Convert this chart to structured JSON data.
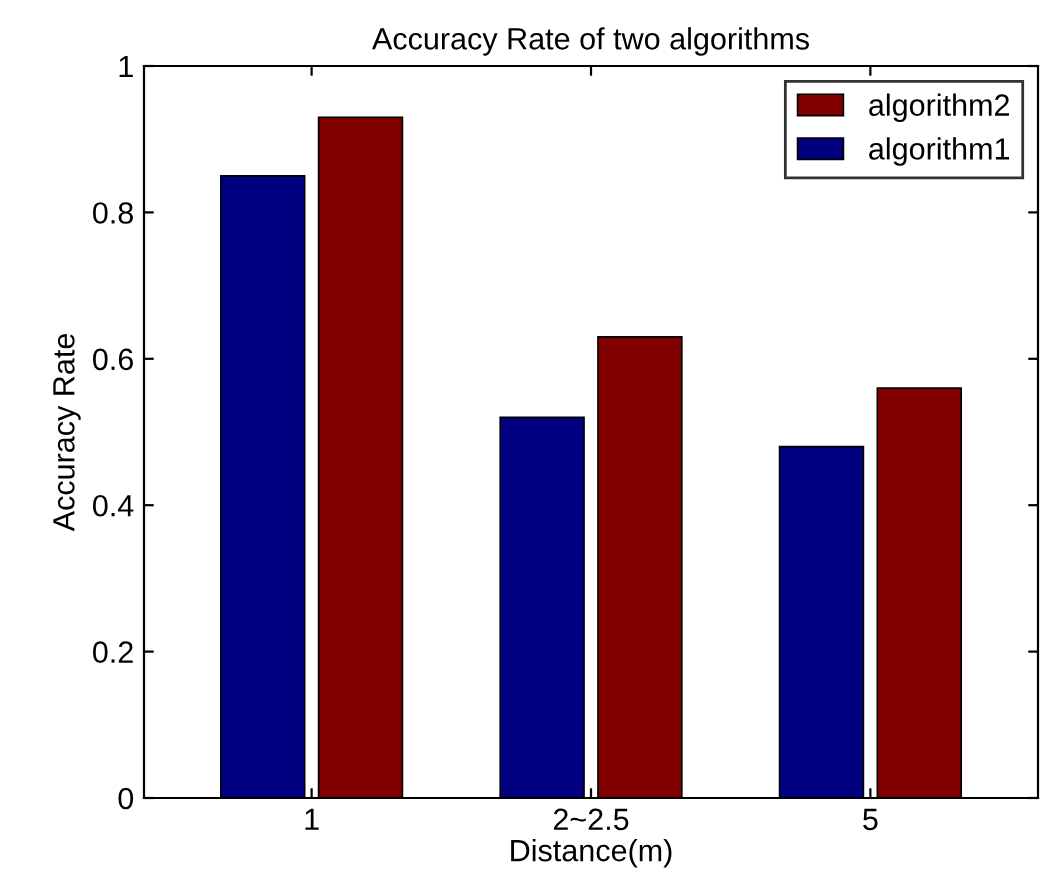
{
  "chart_data": {
    "type": "bar",
    "title": "Accuracy Rate of two algorithms",
    "xlabel": "Distance(m)",
    "ylabel": "Accuracy Rate",
    "categories": [
      "1",
      "2~2.5",
      "5"
    ],
    "series": [
      {
        "name": "algorithm1",
        "color": "#000080",
        "values": [
          0.85,
          0.52,
          0.48
        ]
      },
      {
        "name": "algorithm2",
        "color": "#800000",
        "values": [
          0.93,
          0.63,
          0.56
        ]
      }
    ],
    "ylim": [
      0,
      1
    ],
    "yticks": [
      0,
      0.2,
      0.4,
      0.6,
      0.8,
      1
    ],
    "legend": "top right",
    "grid": false
  }
}
